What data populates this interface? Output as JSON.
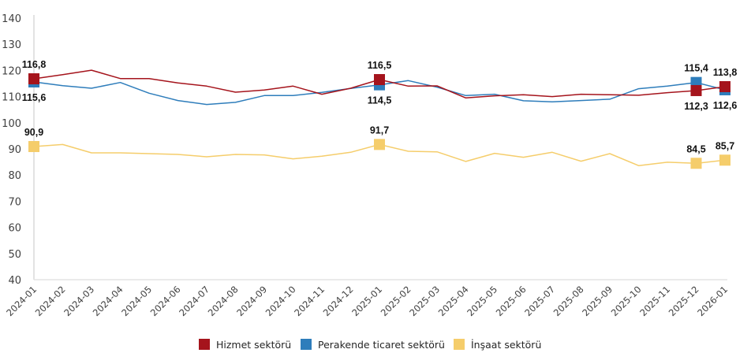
{
  "chart_data": {
    "type": "line",
    "title": "",
    "xlabel": "",
    "ylabel": "",
    "ylim": [
      40,
      140
    ],
    "yticks": [
      "40",
      "50",
      "60",
      "70",
      "80",
      "90",
      "100",
      "110",
      "120",
      "130",
      "140"
    ],
    "grid": false,
    "legend_position": "bottom",
    "categories": [
      "2024-01",
      "2024-02",
      "2024-03",
      "2024-04",
      "2024-05",
      "2024-06",
      "2024-07",
      "2024-08",
      "2024-09",
      "2024-10",
      "2024-11",
      "2024-12",
      "2025-01",
      "2025-02",
      "2025-03",
      "2025-04",
      "2025-05",
      "2025-06",
      "2025-07",
      "2025-08",
      "2025-09",
      "2025-10",
      "2025-11",
      "2025-12",
      "2026-01"
    ],
    "series": [
      {
        "name": "Hizmet sektörü",
        "color": "#A5141C",
        "values": [
          116.8,
          118.4,
          120.1,
          116.9,
          116.9,
          115.2,
          114.0,
          111.7,
          112.5,
          114.0,
          110.9,
          113.2,
          116.5,
          114.0,
          114.1,
          109.5,
          110.3,
          110.7,
          110.0,
          110.9,
          110.7,
          110.5,
          111.5,
          112.3,
          113.8
        ],
        "markers": [
          {
            "index": 0,
            "label": "116,8",
            "position": "above"
          },
          {
            "index": 12,
            "label": "116,5",
            "position": "above"
          },
          {
            "index": 23,
            "label": "112,3",
            "position": "below"
          },
          {
            "index": 24,
            "label": "113,8",
            "position": "above"
          }
        ]
      },
      {
        "name": "Perakende ticaret sektörü",
        "color": "#2E7DBB",
        "values": [
          115.6,
          114.2,
          113.2,
          115.4,
          111.3,
          108.5,
          107.0,
          107.8,
          110.4,
          110.4,
          111.6,
          113.1,
          114.5,
          116.1,
          113.6,
          110.4,
          110.9,
          108.4,
          108.0,
          108.5,
          109.0,
          113.0,
          114.0,
          115.4,
          112.6
        ],
        "markers": [
          {
            "index": 0,
            "label": "115,6",
            "position": "below"
          },
          {
            "index": 12,
            "label": "114,5",
            "position": "below"
          },
          {
            "index": 23,
            "label": "115,4",
            "position": "above"
          },
          {
            "index": 24,
            "label": "112,6",
            "position": "below"
          }
        ]
      },
      {
        "name": "İnşaat sektörü",
        "color": "#F5CD6B",
        "values": [
          90.9,
          91.7,
          88.5,
          88.5,
          88.2,
          87.9,
          87.0,
          87.9,
          87.7,
          86.2,
          87.2,
          88.7,
          91.7,
          89.1,
          88.9,
          85.2,
          88.3,
          86.8,
          88.7,
          85.3,
          88.2,
          83.6,
          84.9,
          84.5,
          85.7
        ],
        "markers": [
          {
            "index": 0,
            "label": "90,9",
            "position": "above"
          },
          {
            "index": 12,
            "label": "91,7",
            "position": "above"
          },
          {
            "index": 23,
            "label": "84,5",
            "position": "above"
          },
          {
            "index": 24,
            "label": "85,7",
            "position": "above"
          }
        ]
      }
    ]
  }
}
